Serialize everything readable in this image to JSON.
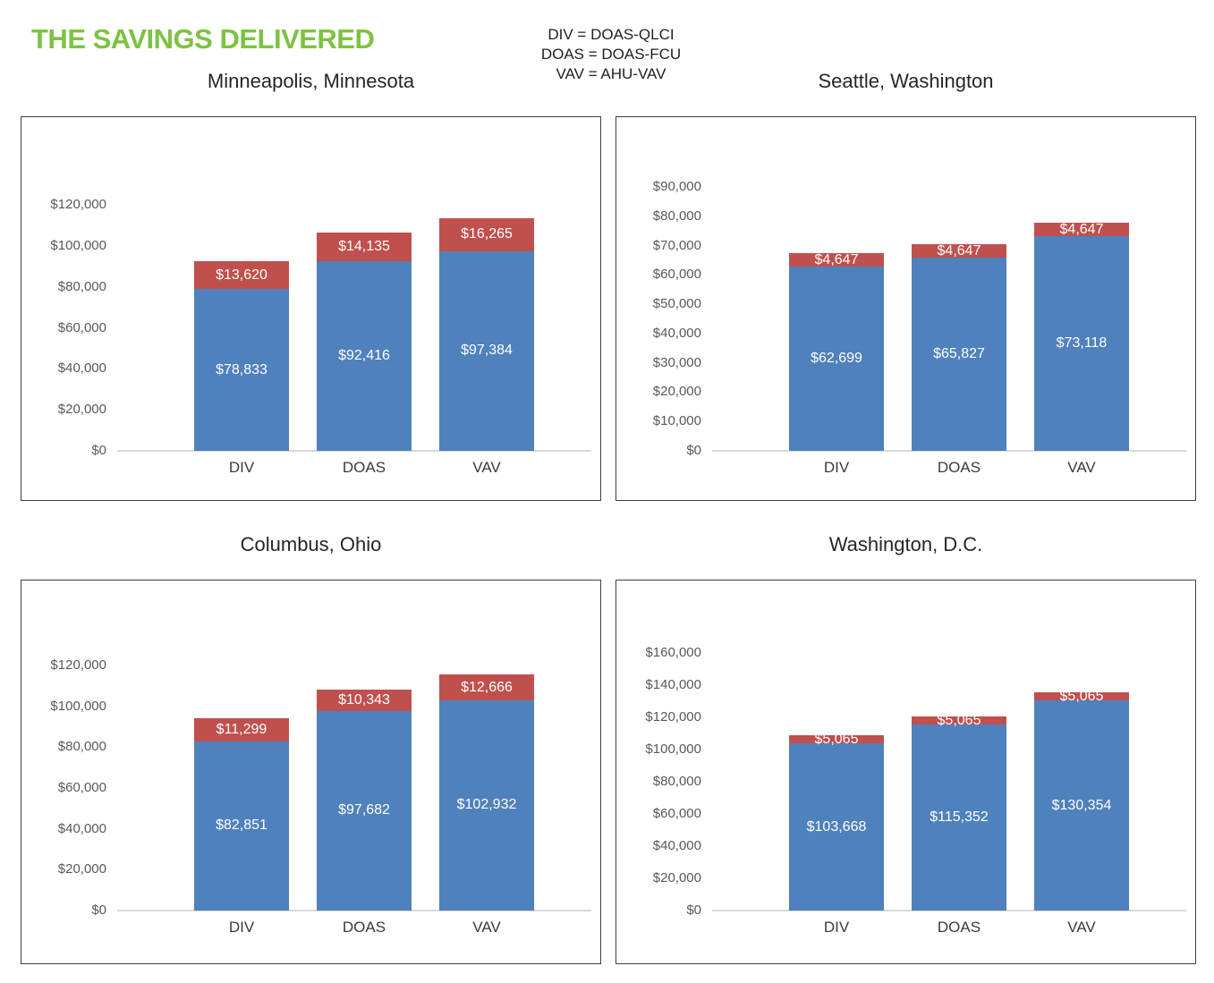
{
  "page": {
    "title": "THE SAVINGS DELIVERED",
    "title_color": "#7DC242",
    "legend_lines": [
      "DIV = DOAS-QLCI",
      "DOAS = DOAS-FCU",
      "VAV = AHU-VAV"
    ]
  },
  "chart_data": [
    {
      "type": "bar",
      "stacked": true,
      "title": "Minneapolis, Minnesota",
      "categories": [
        "DIV",
        "DOAS",
        "VAV"
      ],
      "series": [
        {
          "segment": "blue-base",
          "hex": "#4F81BD",
          "label_color": "#FFFFFF",
          "values": [
            78833,
            92416,
            97384
          ],
          "labels": [
            "$78,833",
            "$92,416",
            "$97,384"
          ]
        },
        {
          "segment": "red-top",
          "hex": "#C0504D",
          "label_color": "#FFFFFF",
          "values": [
            13620,
            14135,
            16265
          ],
          "labels": [
            "$13,620",
            "$14,135",
            "$16,265"
          ]
        }
      ],
      "ylim": [
        0,
        120000
      ],
      "ytick_step": 20000,
      "ytick_labels": [
        "$120,000",
        "$100,000",
        "$80,000",
        "$60,000",
        "$40,000",
        "$20,000",
        "$0"
      ],
      "grid": false,
      "legend_position": "none"
    },
    {
      "type": "bar",
      "stacked": true,
      "title": "Seattle, Washington",
      "categories": [
        "DIV",
        "DOAS",
        "VAV"
      ],
      "series": [
        {
          "segment": "blue-base",
          "hex": "#4F81BD",
          "label_color": "#FFFFFF",
          "values": [
            62699,
            65827,
            73118
          ],
          "labels": [
            "$62,699",
            "$65,827",
            "$73,118"
          ]
        },
        {
          "segment": "red-top",
          "hex": "#C0504D",
          "label_color": "#FFFFFF",
          "values": [
            4647,
            4647,
            4647
          ],
          "labels": [
            "$4,647",
            "$4,647",
            "$4,647"
          ]
        }
      ],
      "ylim": [
        0,
        90000
      ],
      "ytick_step": 10000,
      "ytick_labels": [
        "$90,000",
        "$80,000",
        "$70,000",
        "$60,000",
        "$50,000",
        "$40,000",
        "$30,000",
        "$20,000",
        "$10,000",
        "$0"
      ],
      "grid": false,
      "legend_position": "none"
    },
    {
      "type": "bar",
      "stacked": true,
      "title": "Columbus, Ohio",
      "categories": [
        "DIV",
        "DOAS",
        "VAV"
      ],
      "series": [
        {
          "segment": "blue-base",
          "hex": "#4F81BD",
          "label_color": "#FFFFFF",
          "values": [
            82851,
            97682,
            102932
          ],
          "labels": [
            "$82,851",
            "$97,682",
            "$102,932"
          ]
        },
        {
          "segment": "red-top",
          "hex": "#C0504D",
          "label_color": "#FFFFFF",
          "values": [
            11299,
            10343,
            12666
          ],
          "labels": [
            "$11,299",
            "$10,343",
            "$12,666"
          ]
        }
      ],
      "ylim": [
        0,
        120000
      ],
      "ytick_step": 20000,
      "ytick_labels": [
        "$120,000",
        "$100,000",
        "$80,000",
        "$60,000",
        "$40,000",
        "$20,000",
        "$0"
      ],
      "grid": false,
      "legend_position": "none"
    },
    {
      "type": "bar",
      "stacked": true,
      "title": "Washington, D.C.",
      "categories": [
        "DIV",
        "DOAS",
        "VAV"
      ],
      "series": [
        {
          "segment": "blue-base",
          "hex": "#4F81BD",
          "label_color": "#FFFFFF",
          "values": [
            103668,
            115352,
            130354
          ],
          "labels": [
            "$103,668",
            "$115,352",
            "$130,354"
          ]
        },
        {
          "segment": "red-top",
          "hex": "#C0504D",
          "label_color": "#FFFFFF",
          "values": [
            5065,
            5065,
            5065
          ],
          "labels": [
            "$5,065",
            "$5,065",
            "$5,065"
          ]
        }
      ],
      "ylim": [
        0,
        160000
      ],
      "ytick_step": 20000,
      "ytick_labels": [
        "$160,000",
        "$140,000",
        "$120,000",
        "$100,000",
        "$80,000",
        "$60,000",
        "$40,000",
        "$20,000",
        "$0"
      ],
      "grid": false,
      "legend_position": "none"
    }
  ]
}
